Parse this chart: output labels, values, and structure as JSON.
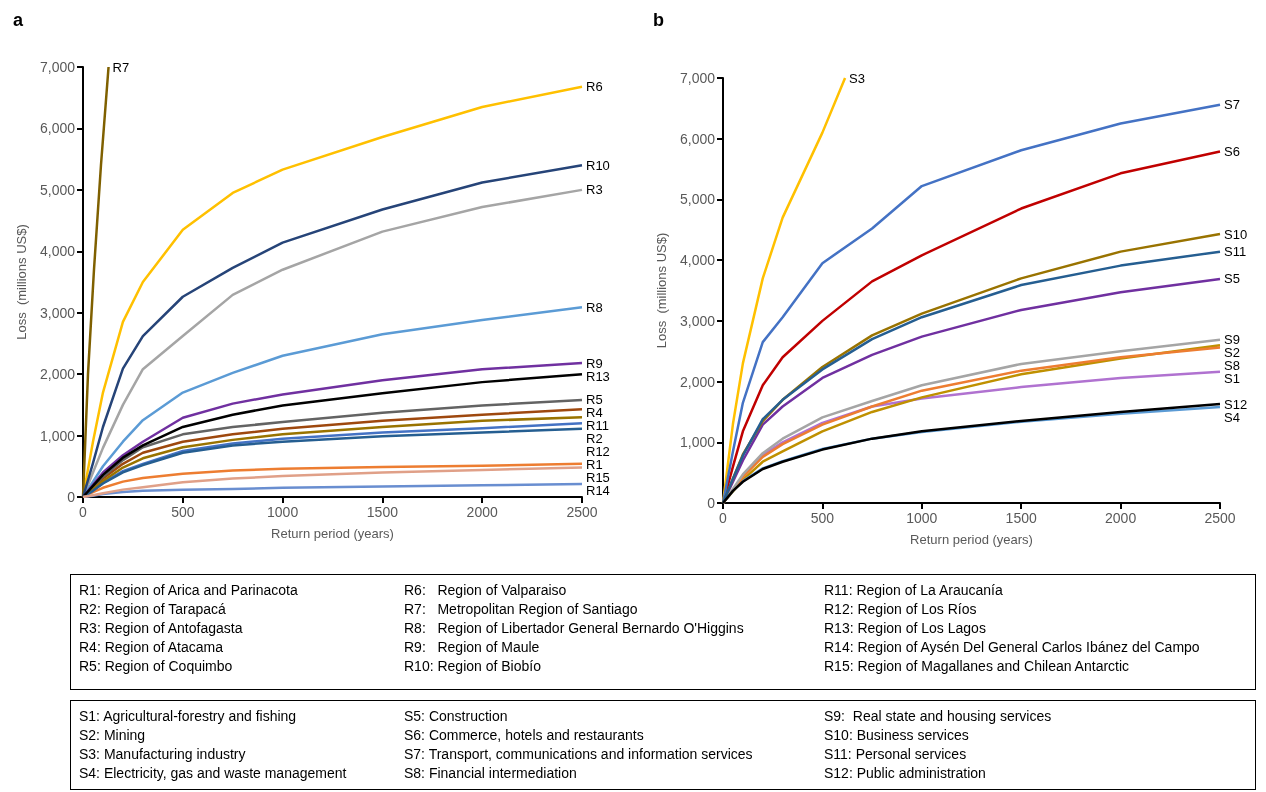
{
  "chart_data": [
    {
      "type": "line",
      "title": "a",
      "xlabel": "Return period (years)",
      "ylabel": "Loss  (millions US$)",
      "marker": "none",
      "grid": false,
      "x": [
        0,
        50,
        100,
        200,
        300,
        500,
        750,
        1000,
        1500,
        2000,
        2500
      ],
      "xlim": [
        0,
        2500
      ],
      "xticks": [
        0,
        500,
        1000,
        1500,
        2000,
        2500
      ],
      "ylim": [
        0,
        7000
      ],
      "yticks": [
        0,
        {
          "value": 1000,
          "label": "1,000"
        },
        {
          "value": 2000,
          "label": "2,000"
        },
        {
          "value": 3000,
          "label": "3,000"
        },
        {
          "value": 4000,
          "label": "4,000"
        },
        {
          "value": 5000,
          "label": "5,000"
        },
        {
          "value": 6000,
          "label": "6,000"
        },
        {
          "value": 7000,
          "label": "7,000"
        }
      ],
      "series": [
        {
          "name": "R1",
          "color": "#ed7d31",
          "values": [
            0,
            80,
            150,
            250,
            310,
            380,
            430,
            460,
            490,
            510,
            540
          ]
        },
        {
          "name": "R2",
          "color": "#4472c4",
          "values": [
            0,
            110,
            230,
            420,
            540,
            750,
            870,
            950,
            1050,
            1120,
            1200
          ]
        },
        {
          "name": "R3",
          "color": "#a5a5a5",
          "values": [
            0,
            400,
            800,
            1500,
            2080,
            2620,
            3290,
            3700,
            4320,
            4720,
            5000
          ]
        },
        {
          "name": "R4",
          "color": "#9e480e",
          "values": [
            0,
            150,
            300,
            540,
            720,
            900,
            1020,
            1110,
            1240,
            1340,
            1430
          ]
        },
        {
          "name": "R5",
          "color": "#636363",
          "values": [
            0,
            170,
            330,
            600,
            810,
            1020,
            1140,
            1220,
            1370,
            1490,
            1580
          ]
        },
        {
          "name": "R6",
          "color": "#ffc000",
          "values": [
            0,
            900,
            1700,
            2850,
            3500,
            4350,
            4950,
            5330,
            5860,
            6350,
            6680
          ]
        },
        {
          "name": "R7",
          "color": "#7f6000",
          "x": [
            0,
            25,
            55,
            90,
            128
          ],
          "values": [
            0,
            2000,
            3700,
            5400,
            7000
          ]
        },
        {
          "name": "R8",
          "color": "#5b9bd5",
          "values": [
            0,
            250,
            500,
            900,
            1250,
            1700,
            2020,
            2300,
            2650,
            2880,
            3090
          ]
        },
        {
          "name": "R9",
          "color": "#7030a0",
          "values": [
            0,
            200,
            400,
            680,
            900,
            1290,
            1520,
            1670,
            1900,
            2080,
            2180
          ]
        },
        {
          "name": "R10",
          "color": "#264478",
          "values": [
            0,
            550,
            1140,
            2090,
            2620,
            3260,
            3730,
            4140,
            4680,
            5120,
            5400
          ]
        },
        {
          "name": "R11",
          "color": "#997300",
          "values": [
            0,
            130,
            260,
            480,
            630,
            810,
            930,
            1020,
            1140,
            1240,
            1300
          ]
        },
        {
          "name": "R12",
          "color": "#255e91",
          "values": [
            0,
            100,
            220,
            400,
            520,
            720,
            840,
            900,
            990,
            1050,
            1110
          ]
        },
        {
          "name": "R13",
          "color": "#000000",
          "values": [
            0,
            180,
            360,
            640,
            840,
            1140,
            1340,
            1490,
            1690,
            1870,
            2000
          ]
        },
        {
          "name": "R14",
          "color": "#698ed0",
          "values": [
            0,
            20,
            50,
            80,
            100,
            120,
            130,
            150,
            170,
            190,
            210
          ]
        },
        {
          "name": "R15",
          "color": "#e0a088",
          "values": [
            0,
            30,
            60,
            120,
            160,
            240,
            300,
            340,
            400,
            440,
            480
          ]
        }
      ],
      "annotations": [
        "R1: Region of Arica and Parinacota",
        "R2: Region of Tarapacá",
        "R3: Region of Antofagasta",
        "R4: Region of Atacama",
        "R5: Region of Coquimbo",
        "R6:   Region of Valparaiso",
        "R7:   Metropolitan Region of Santiago",
        "R8:   Region of Libertador General Bernardo O'Higgins",
        "R9:   Region of Maule",
        "R10: Region of Biobío",
        "R11: Region of La Araucanía",
        "R12: Region of Los Ríos",
        "R13: Region of Los Lagos",
        "R14: Region of Aysén Del General Carlos Ibánez del Campo",
        "R15: Region of Magallanes and Chilean Antarctic"
      ]
    },
    {
      "type": "line",
      "title": "b",
      "xlabel": "Return period (years)",
      "ylabel": "Loss  (millions US$)",
      "marker": "none",
      "grid": false,
      "x": [
        0,
        50,
        100,
        200,
        300,
        500,
        750,
        1000,
        1500,
        2000,
        2500
      ],
      "xlim": [
        0,
        2500
      ],
      "xticks": [
        0,
        500,
        1000,
        1500,
        2000,
        2500
      ],
      "ylim": [
        0,
        7000
      ],
      "yticks": [
        0,
        {
          "value": 1000,
          "label": "1,000"
        },
        {
          "value": 2000,
          "label": "2,000"
        },
        {
          "value": 3000,
          "label": "3,000"
        },
        {
          "value": 4000,
          "label": "4,000"
        },
        {
          "value": 5000,
          "label": "5,000"
        },
        {
          "value": 6000,
          "label": "6,000"
        },
        {
          "value": 7000,
          "label": "7,000"
        }
      ],
      "series": [
        {
          "name": "S1",
          "color": "#b072d0",
          "values": [
            0,
            220,
            440,
            790,
            1000,
            1320,
            1590,
            1720,
            1910,
            2060,
            2160
          ]
        },
        {
          "name": "S2",
          "color": "#bf9000",
          "values": [
            0,
            190,
            380,
            680,
            850,
            1180,
            1500,
            1740,
            2120,
            2380,
            2600
          ]
        },
        {
          "name": "S3",
          "color": "#ffc000",
          "x": [
            0,
            50,
            100,
            200,
            300,
            500,
            614
          ],
          "values": [
            0,
            1300,
            2300,
            3700,
            4700,
            6100,
            7000
          ]
        },
        {
          "name": "S4",
          "color": "#5b9bd5",
          "values": [
            0,
            200,
            360,
            570,
            690,
            890,
            1060,
            1170,
            1340,
            1470,
            1580
          ]
        },
        {
          "name": "S5",
          "color": "#7030a0",
          "values": [
            0,
            350,
            700,
            1290,
            1590,
            2060,
            2440,
            2740,
            3180,
            3470,
            3690
          ]
        },
        {
          "name": "S6",
          "color": "#c00000",
          "values": [
            0,
            600,
            1180,
            1940,
            2400,
            3000,
            3650,
            4080,
            4850,
            5430,
            5790
          ]
        },
        {
          "name": "S7",
          "color": "#4472c4",
          "values": [
            0,
            850,
            1650,
            2650,
            3060,
            3950,
            4520,
            5220,
            5810,
            6250,
            6560
          ]
        },
        {
          "name": "S8",
          "color": "#ed7d31",
          "values": [
            0,
            210,
            430,
            760,
            970,
            1290,
            1590,
            1850,
            2180,
            2400,
            2560
          ]
        },
        {
          "name": "S9",
          "color": "#a5a5a5",
          "values": [
            0,
            230,
            470,
            820,
            1060,
            1410,
            1680,
            1940,
            2290,
            2500,
            2690
          ]
        },
        {
          "name": "S10",
          "color": "#997300",
          "values": [
            0,
            400,
            800,
            1350,
            1700,
            2240,
            2760,
            3120,
            3700,
            4140,
            4430
          ]
        },
        {
          "name": "S11",
          "color": "#255e91",
          "values": [
            0,
            400,
            780,
            1380,
            1700,
            2200,
            2700,
            3060,
            3590,
            3910,
            4140
          ]
        },
        {
          "name": "S12",
          "color": "#000000",
          "values": [
            0,
            200,
            350,
            560,
            680,
            880,
            1060,
            1180,
            1350,
            1500,
            1630
          ]
        }
      ],
      "annotations": [
        "S1: Agricultural-forestry and fishing",
        "S2: Mining",
        "S3: Manufacturing industry",
        "S4: Electricity, gas and waste management",
        "S5: Construction",
        "S6: Commerce, hotels and restaurants",
        "S7: Transport, communications and information services",
        "S8: Financial intermediation",
        "S9:  Real state and housing services",
        "S10: Business services",
        "S11: Personal services",
        "S12: Public administration"
      ]
    }
  ]
}
